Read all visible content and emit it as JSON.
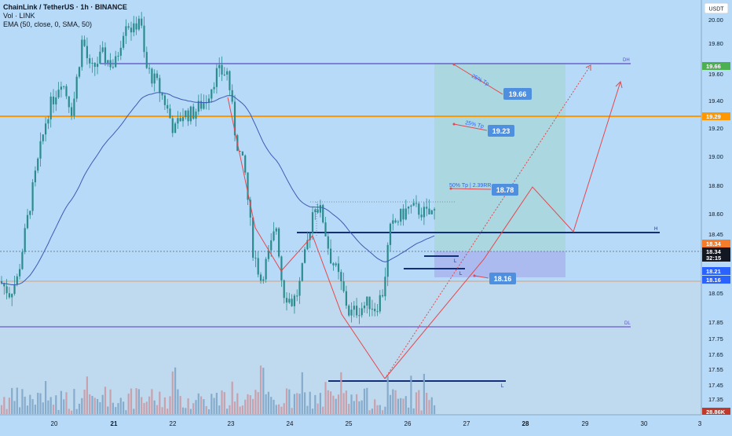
{
  "header": {
    "title": "ChainLink / TetherUS · 1h · BINANCE",
    "vol_label": "Vol · LINK",
    "ema_label": "EMA (50, close, 0, SMA, 50)"
  },
  "axis": {
    "currency": "USDT",
    "price_ticks": [
      "20.00",
      "19.80",
      "19.60",
      "19.40",
      "19.20",
      "19.00",
      "18.80",
      "18.60",
      "18.45",
      "18.05",
      "17.85",
      "17.75",
      "17.65",
      "17.55",
      "17.45",
      "17.35"
    ],
    "date_ticks": [
      "20",
      "21",
      "22",
      "23",
      "24",
      "25",
      "26",
      "27",
      "28",
      "29",
      "30",
      "3"
    ],
    "badges": [
      {
        "text": "19.66",
        "color": "#4caf50"
      },
      {
        "text": "19.29",
        "color": "#ff9800"
      },
      {
        "text": "18.34",
        "color": "#f57c28"
      },
      {
        "text": "18.34",
        "color": "#131722"
      },
      {
        "text": "32:15",
        "color": "#131722"
      },
      {
        "text": "18.21",
        "color": "#2962ff"
      },
      {
        "text": "18.16",
        "color": "#2962ff"
      },
      {
        "text": "28.86K",
        "color": "#c0392b"
      }
    ]
  },
  "annotations": {
    "dh": "DH",
    "dl": "DL",
    "h": "H",
    "l1": "L",
    "l2": "L",
    "l3": "L",
    "tp1_label": "25% Tp",
    "tp1_value": "19.66",
    "tp2_label": "25% Tp",
    "tp2_value": "19.23",
    "tp3_label": "50% Tp | 2.39RR",
    "tp3_value": "18.78",
    "sl_value": "18.16"
  },
  "chart_data": {
    "type": "candlestick",
    "title": "ChainLink / TetherUS · 1h · BINANCE",
    "x": [
      "20",
      "21",
      "22",
      "23",
      "24",
      "25",
      "26",
      "27",
      "28",
      "29",
      "30"
    ],
    "ylim": [
      17.28,
      20.08
    ],
    "ylabel": "USDT",
    "levels": {
      "dh": 19.66,
      "orange": 19.29,
      "h": 18.45,
      "dl": 17.82,
      "low": 17.47,
      "current": 18.34
    },
    "position": {
      "entry": 18.34,
      "stop": 18.16,
      "targets": [
        18.78,
        19.23,
        19.66
      ],
      "rr": "2.39RR"
    },
    "ema_period": 50,
    "last_volume": "28.86K"
  },
  "colors": {
    "background": "#b6daf7",
    "up": "#2a8c8e",
    "down": "#2a8c8e",
    "ema": "#3d5bb5",
    "orange": "#ff9800",
    "purple": "#6b57d6",
    "navy": "#12307a",
    "target_zone": "#a9d6dc",
    "stop_zone": "#aab7ee",
    "red": "#e5484d"
  }
}
